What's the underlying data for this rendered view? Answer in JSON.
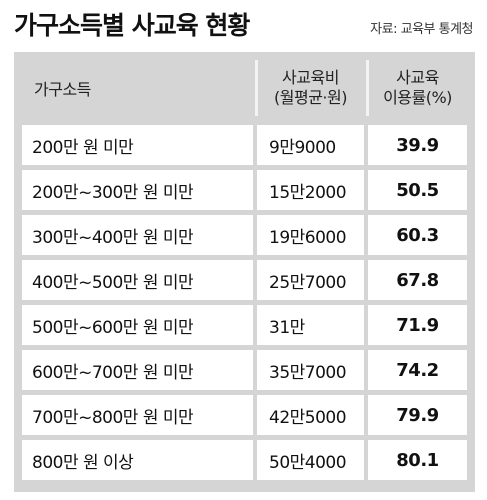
{
  "title": "가구소득별 사교육 현황",
  "source": "자료: 교육부 통계청",
  "chart_data": {
    "type": "table",
    "columns": [
      {
        "label": "가구소득"
      },
      {
        "label_line1": "사교육비",
        "label_line2": "(월평균·원)"
      },
      {
        "label_line1": "사교육",
        "label_line2": "이용률(%)"
      }
    ],
    "rows": [
      {
        "income": "200만 원 미만",
        "cost": "9만9000",
        "rate": "39.9"
      },
      {
        "income": "200만~300만 원 미만",
        "cost": "15만2000",
        "rate": "50.5"
      },
      {
        "income": "300만~400만 원 미만",
        "cost": "19만6000",
        "rate": "60.3"
      },
      {
        "income": "400만~500만 원 미만",
        "cost": "25만7000",
        "rate": "67.8"
      },
      {
        "income": "500만~600만 원 미만",
        "cost": "31만",
        "rate": "71.9"
      },
      {
        "income": "600만~700만 원 미만",
        "cost": "35만7000",
        "rate": "74.2"
      },
      {
        "income": "700만~800만 원 미만",
        "cost": "42만5000",
        "rate": "79.9"
      },
      {
        "income": "800만 원 이상",
        "cost": "50만4000",
        "rate": "80.1"
      }
    ]
  }
}
